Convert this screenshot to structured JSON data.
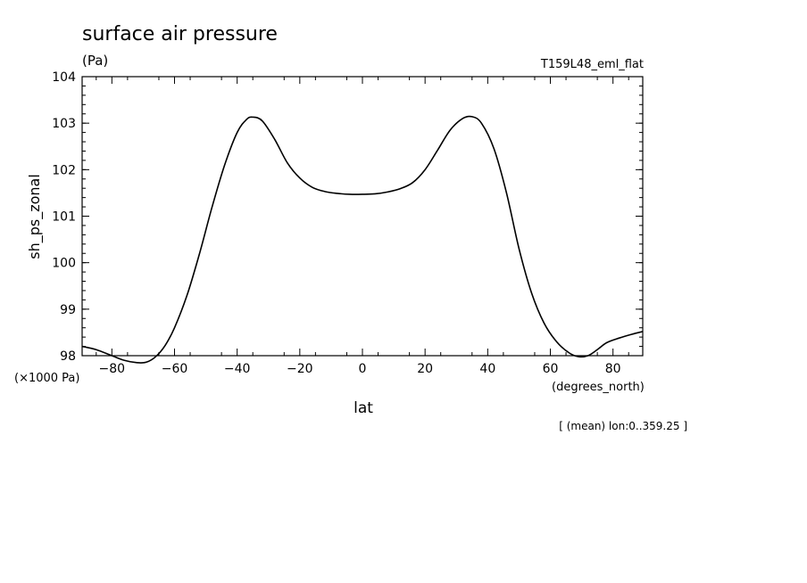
{
  "chart_data": {
    "type": "line",
    "title": "surface air pressure",
    "units": "(Pa)",
    "run_label": "T159L48_eml_flat",
    "xlabel": "lat",
    "x_unit_label": "(degrees_north)",
    "ylabel": "sh_ps_zonal",
    "y_scale_label": "(×1000 Pa)",
    "footnote": "[ (mean) lon:0..359.25 ]",
    "xlim": [
      -89.5,
      89.5
    ],
    "ylim": [
      98,
      104
    ],
    "x_ticks": [
      -80,
      -60,
      -40,
      -20,
      0,
      20,
      40,
      60,
      80
    ],
    "x_tick_labels": [
      "−80",
      "−60",
      "−40",
      "−20",
      "0",
      "20",
      "40",
      "60",
      "80"
    ],
    "y_ticks": [
      98,
      99,
      100,
      101,
      102,
      103,
      104
    ],
    "y_tick_labels": [
      "98",
      "99",
      "100",
      "101",
      "102",
      "103",
      "104"
    ],
    "grid": false,
    "series": [
      {
        "color": "#000000",
        "x": [
          -89.5,
          -85,
          -80,
          -76,
          -72,
          -69,
          -66,
          -63,
          -60,
          -56,
          -52,
          -48,
          -44,
          -40,
          -37,
          -35,
          -32,
          -28,
          -24,
          -20,
          -16,
          -12,
          -8,
          -4,
          0,
          4,
          8,
          12,
          16,
          20,
          24,
          28,
          32,
          35,
          38,
          42,
          46,
          50,
          54,
          58,
          62,
          66,
          69,
          72,
          75,
          78,
          82,
          86,
          89.5
        ],
        "values": [
          98.2,
          98.13,
          98.0,
          97.9,
          97.85,
          97.86,
          97.98,
          98.22,
          98.6,
          99.3,
          100.2,
          101.2,
          102.1,
          102.8,
          103.08,
          103.13,
          103.05,
          102.65,
          102.15,
          101.82,
          101.62,
          101.53,
          101.49,
          101.47,
          101.47,
          101.48,
          101.52,
          101.59,
          101.72,
          102.0,
          102.42,
          102.85,
          103.1,
          103.14,
          103.0,
          102.45,
          101.5,
          100.3,
          99.35,
          98.7,
          98.3,
          98.06,
          97.98,
          98.0,
          98.13,
          98.28,
          98.38,
          98.46,
          98.52
        ]
      }
    ]
  }
}
